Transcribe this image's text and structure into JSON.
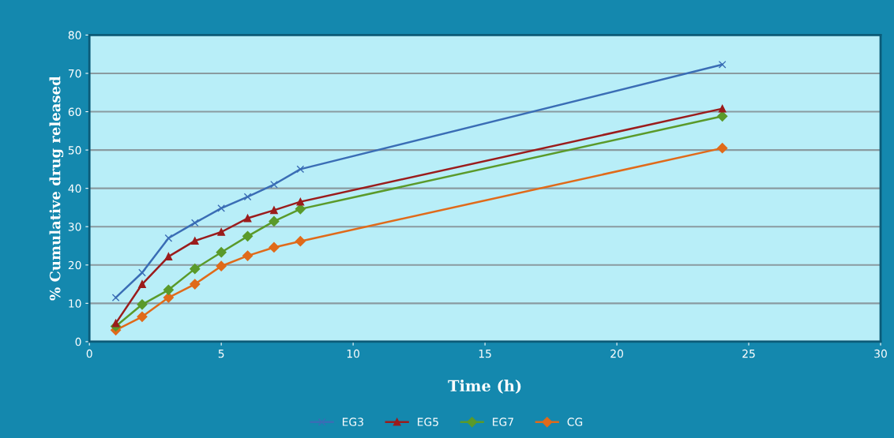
{
  "chart_data": {
    "type": "line",
    "xlabel": "Time (h)",
    "ylabel": "% Cumulative drug released",
    "x": [
      1,
      2,
      3,
      4,
      5,
      6,
      7,
      8,
      24
    ],
    "series": [
      {
        "name": "EG3",
        "color": "#3a6db5",
        "marker": "cross",
        "values": [
          11.5,
          18,
          27,
          31,
          34.8,
          37.8,
          41,
          45,
          72.3
        ]
      },
      {
        "name": "EG5",
        "color": "#9b1c1c",
        "marker": "triangle",
        "values": [
          4.8,
          15,
          22.2,
          26.3,
          28.6,
          32.2,
          34.3,
          36.5,
          60.8
        ]
      },
      {
        "name": "EG7",
        "color": "#5a9a2a",
        "marker": "diamond",
        "values": [
          4.0,
          9.7,
          13.5,
          19,
          23.3,
          27.5,
          31.4,
          34.6,
          58.8
        ]
      },
      {
        "name": "CG",
        "color": "#e06a1a",
        "marker": "diamond",
        "values": [
          3,
          6.5,
          11.5,
          15,
          19.7,
          22.4,
          24.6,
          26.2,
          50.5
        ]
      }
    ],
    "xlim": [
      0,
      30
    ],
    "xticks": [
      0,
      5,
      10,
      15,
      20,
      25,
      30
    ],
    "ylim": [
      0,
      80
    ],
    "yticks": [
      0,
      10,
      20,
      30,
      40,
      50,
      60,
      70,
      80
    ],
    "grid": "y",
    "legend": "bottom"
  }
}
